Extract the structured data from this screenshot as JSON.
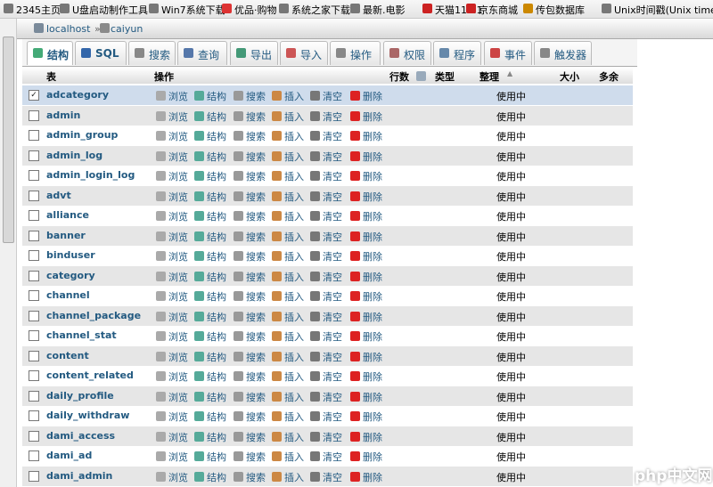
{
  "bookmarks": [
    "2345主页",
    "U盘启动制作工具",
    "Win7系统下载",
    "优品·购物",
    "系统之家下载",
    "最新.电影",
    "天猫11.11",
    "京东商城",
    "传包数据库",
    "Unix时间戳(Unix time..."
  ],
  "breadcrumb": [
    "localhost",
    "caiyun"
  ],
  "tabs": [
    "结构",
    "SQL",
    "搜索",
    "查询",
    "导出",
    "导入",
    "操作",
    "权限",
    "程序",
    "事件",
    "触发器"
  ],
  "table": {
    "headers": [
      "表",
      "操作",
      "行数",
      "类型",
      "整理",
      "大小",
      "多余"
    ],
    "actions": [
      "浏览",
      "结构",
      "搜索",
      "插入",
      "清空",
      "删除"
    ],
    "rows": [
      {
        "name": "adcategory",
        "status": "使用中"
      },
      {
        "name": "admin",
        "status": "使用中"
      },
      {
        "name": "admin_group",
        "status": "使用中"
      },
      {
        "name": "admin_log",
        "status": "使用中"
      },
      {
        "name": "admin_login_log",
        "status": "使用中"
      },
      {
        "name": "advt",
        "status": "使用中"
      },
      {
        "name": "alliance",
        "status": "使用中"
      },
      {
        "name": "banner",
        "status": "使用中"
      },
      {
        "name": "binduser",
        "status": "使用中"
      },
      {
        "name": "category",
        "status": "使用中"
      },
      {
        "name": "channel",
        "status": "使用中"
      },
      {
        "name": "channel_package",
        "status": "使用中"
      },
      {
        "name": "channel_stat",
        "status": "使用中"
      },
      {
        "name": "content",
        "status": "使用中"
      },
      {
        "name": "content_related",
        "status": "使用中"
      },
      {
        "name": "daily_profile",
        "status": "使用中"
      },
      {
        "name": "daily_withdraw",
        "status": "使用中"
      },
      {
        "name": "dami_access",
        "status": "使用中"
      },
      {
        "name": "dami_ad",
        "status": "使用中"
      },
      {
        "name": "dami_admin",
        "status": "使用中"
      }
    ]
  },
  "watermark": "php中文网"
}
